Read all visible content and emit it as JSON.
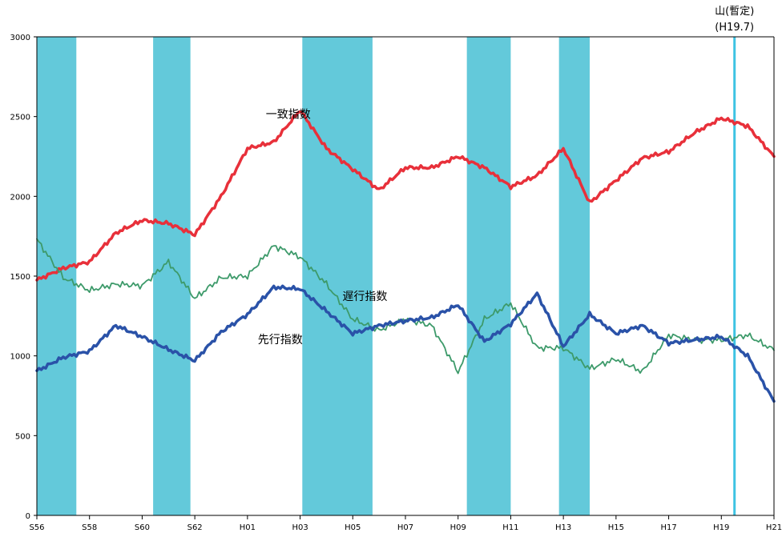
{
  "chart_data": {
    "type": "line",
    "title": "",
    "xlabel": "",
    "ylabel": "",
    "x_ticks": [
      "S56",
      "S58",
      "S60",
      "S62",
      "H01",
      "H03",
      "H05",
      "H07",
      "H09",
      "H11",
      "H13",
      "H15",
      "H17",
      "H19",
      "H21"
    ],
    "xlim": [
      "S56",
      "H21"
    ],
    "y_ticks": [
      "0",
      "500",
      "1000",
      "1500",
      "2000",
      "2500",
      "3000"
    ],
    "ylim": [
      0,
      3000
    ],
    "grid": false,
    "legend": "none",
    "recessions": [
      [
        "S56",
        "S57.7"
      ],
      [
        "S60.6",
        "S61.11"
      ],
      [
        "H03.2",
        "H05.10"
      ],
      [
        "H09.5",
        "H11.1"
      ],
      [
        "H12.11",
        "H14.1"
      ]
    ],
    "peak_marker": {
      "x": "H19.7",
      "label_line1": "山(暫定)",
      "label_line2": "(H19.7)"
    },
    "series": [
      {
        "name": "一致指数",
        "color": "#e8303a",
        "width": 3.5,
        "points": [
          [
            "S56",
            1475
          ],
          [
            "S57",
            1550
          ],
          [
            "S58",
            1590
          ],
          [
            "S59",
            1770
          ],
          [
            "S60",
            1850
          ],
          [
            "S61",
            1830
          ],
          [
            "S62",
            1760
          ],
          [
            "S63",
            2000
          ],
          [
            "H01",
            2300
          ],
          [
            "H02",
            2340
          ],
          [
            "H03",
            2540
          ],
          [
            "H04",
            2300
          ],
          [
            "H05",
            2170
          ],
          [
            "H06",
            2040
          ],
          [
            "H07",
            2180
          ],
          [
            "H08",
            2180
          ],
          [
            "H09",
            2250
          ],
          [
            "H10",
            2180
          ],
          [
            "H11",
            2060
          ],
          [
            "H12",
            2130
          ],
          [
            "H13",
            2300
          ],
          [
            "H14",
            1960
          ],
          [
            "H15",
            2100
          ],
          [
            "H16",
            2240
          ],
          [
            "H17",
            2280
          ],
          [
            "H18",
            2400
          ],
          [
            "H19",
            2490
          ],
          [
            "H20",
            2440
          ],
          [
            "H21",
            2250
          ]
        ]
      },
      {
        "name": "遅行指数",
        "color": "#3d9a6a",
        "width": 1.8,
        "points": [
          [
            "S56",
            1730
          ],
          [
            "S57",
            1490
          ],
          [
            "S58",
            1410
          ],
          [
            "S59",
            1450
          ],
          [
            "S60",
            1440
          ],
          [
            "S61",
            1590
          ],
          [
            "S62",
            1360
          ],
          [
            "S63",
            1490
          ],
          [
            "H01",
            1500
          ],
          [
            "H02",
            1690
          ],
          [
            "H03",
            1620
          ],
          [
            "H04",
            1450
          ],
          [
            "H05",
            1230
          ],
          [
            "H06",
            1160
          ],
          [
            "H07",
            1230
          ],
          [
            "H08",
            1190
          ],
          [
            "H09",
            900
          ],
          [
            "H10",
            1230
          ],
          [
            "H11",
            1330
          ],
          [
            "H12",
            1050
          ],
          [
            "H13",
            1050
          ],
          [
            "H14",
            920
          ],
          [
            "H15",
            980
          ],
          [
            "H16",
            900
          ],
          [
            "H17",
            1130
          ],
          [
            "H18",
            1100
          ],
          [
            "H19",
            1100
          ],
          [
            "H20",
            1130
          ],
          [
            "H21",
            1035
          ]
        ]
      },
      {
        "name": "先行指数",
        "color": "#2a52a8",
        "width": 3.5,
        "points": [
          [
            "S56",
            905
          ],
          [
            "S57",
            990
          ],
          [
            "S58",
            1030
          ],
          [
            "S59",
            1190
          ],
          [
            "S60",
            1120
          ],
          [
            "S61",
            1040
          ],
          [
            "S62",
            970
          ],
          [
            "S63",
            1150
          ],
          [
            "H01",
            1260
          ],
          [
            "H02",
            1430
          ],
          [
            "H03",
            1420
          ],
          [
            "H04",
            1280
          ],
          [
            "H05",
            1140
          ],
          [
            "H06",
            1190
          ],
          [
            "H07",
            1220
          ],
          [
            "H08",
            1240
          ],
          [
            "H09",
            1320
          ],
          [
            "H10",
            1090
          ],
          [
            "H11",
            1200
          ],
          [
            "H12",
            1390
          ],
          [
            "H13",
            1060
          ],
          [
            "H14",
            1260
          ],
          [
            "H15",
            1140
          ],
          [
            "H16",
            1190
          ],
          [
            "H17",
            1080
          ],
          [
            "H18",
            1100
          ],
          [
            "H19",
            1120
          ],
          [
            "H20",
            1000
          ],
          [
            "H21",
            715
          ]
        ]
      }
    ]
  }
}
